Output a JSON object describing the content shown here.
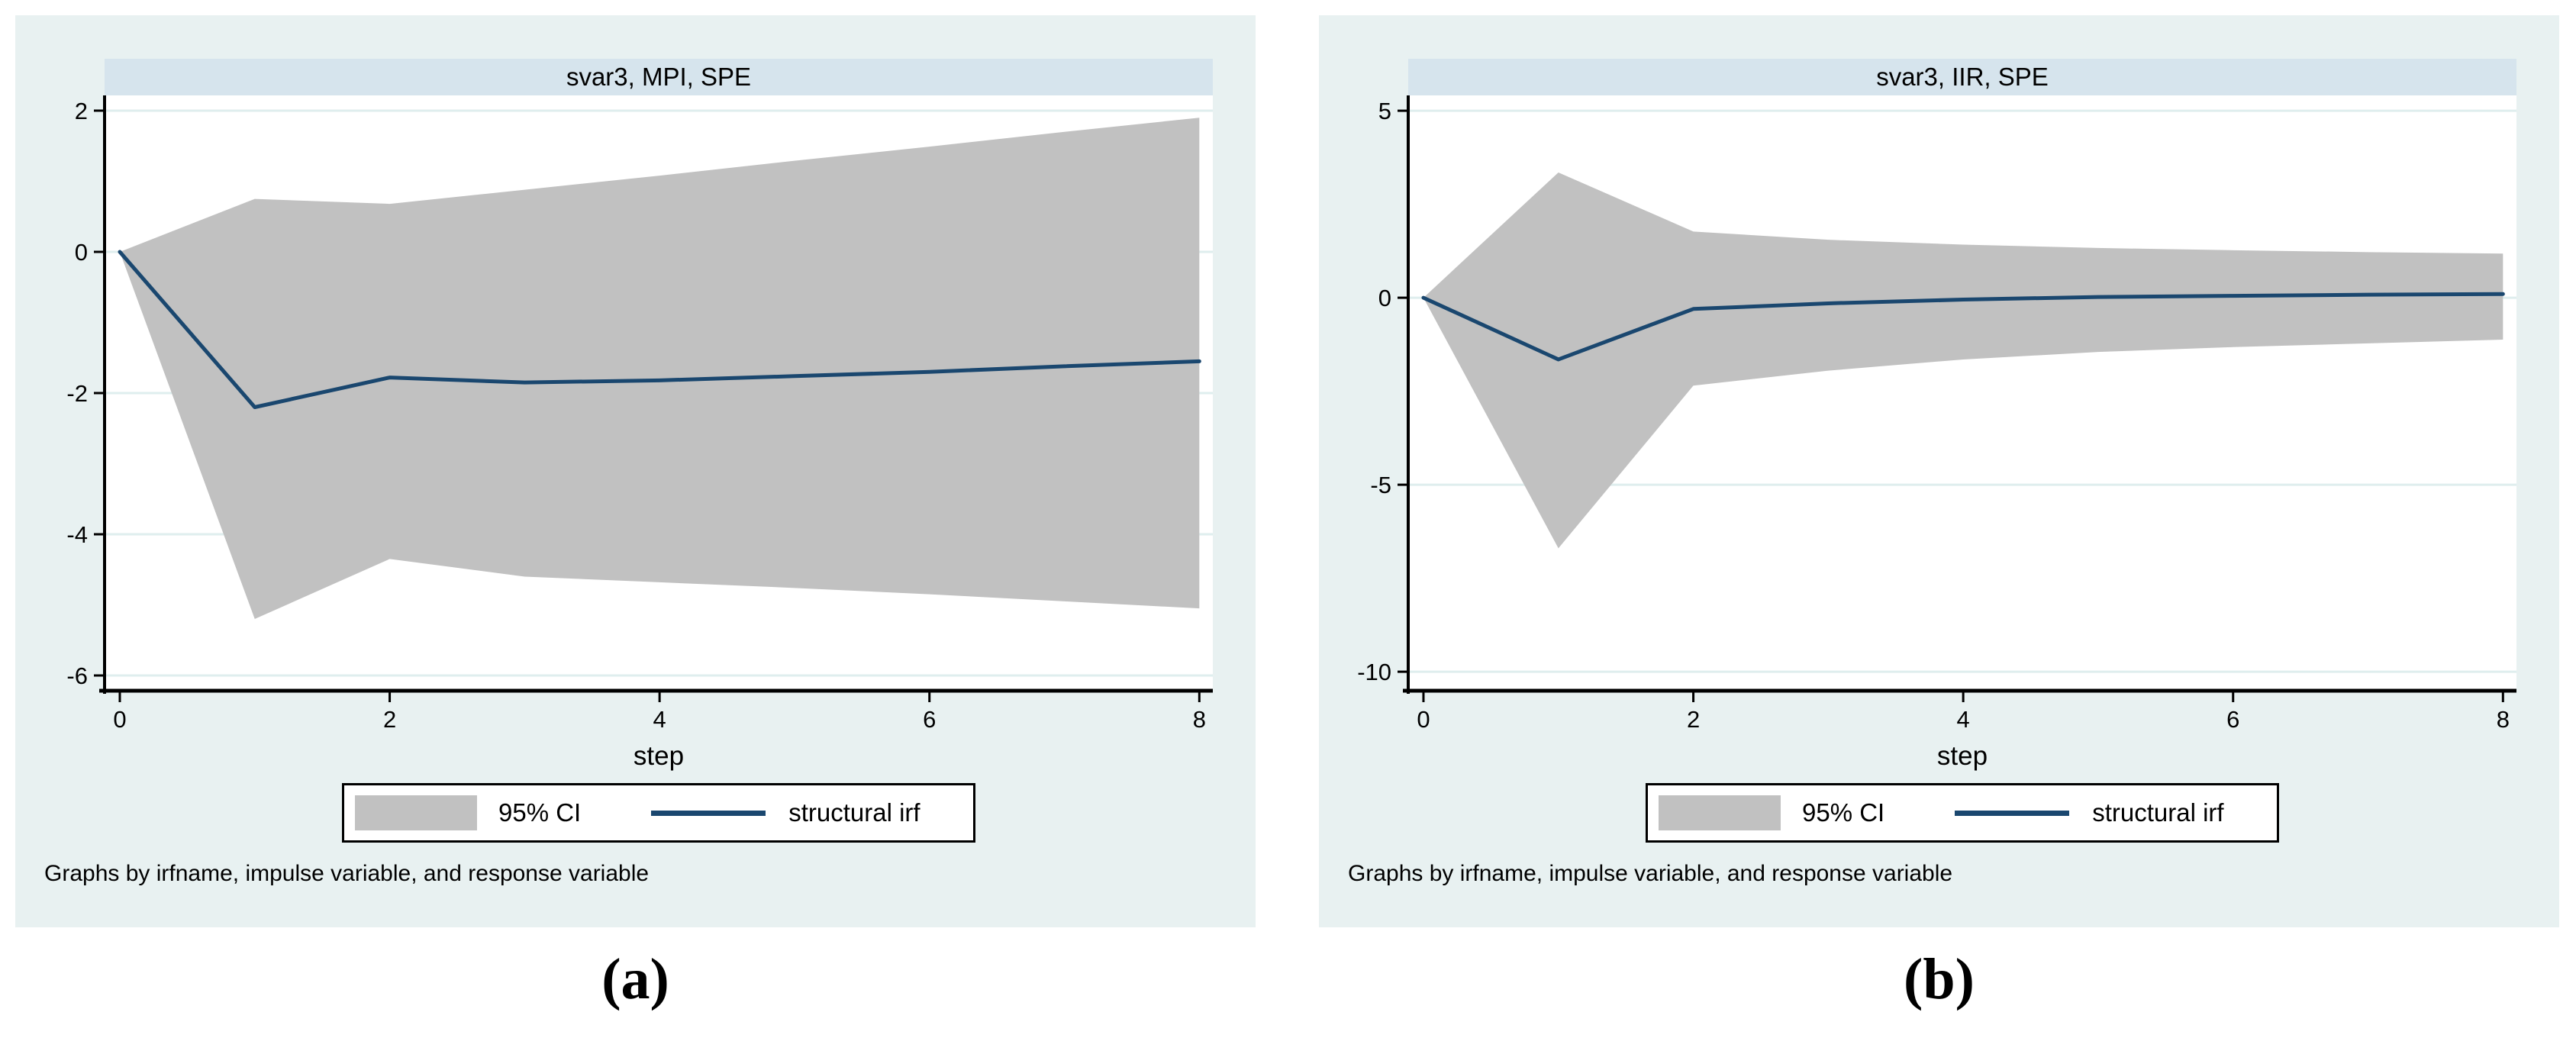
{
  "page": {
    "captions": [
      "(a)",
      "(b)"
    ]
  },
  "colors": {
    "figure_background": "#e8f1f1",
    "title_band": "#d6e4ed",
    "plot_background": "#ffffff",
    "gridline": "#dfeeee",
    "axis": "#000000",
    "ci_band": "#c1c1c1",
    "irf_line": "#1a476f",
    "text": "#000000"
  },
  "chart_data": [
    {
      "type": "area",
      "title": "svar3, MPI, SPE",
      "xlabel": "step",
      "ylabel": "",
      "x": [
        0,
        1,
        2,
        3,
        4,
        5,
        6,
        7,
        8
      ],
      "series": [
        {
          "name": "95% CI",
          "kind": "band",
          "upper": [
            0,
            0.75,
            0.68,
            0.88,
            1.08,
            1.29,
            1.49,
            1.7,
            1.9
          ],
          "lower": [
            0,
            -5.2,
            -4.35,
            -4.6,
            -4.68,
            -4.76,
            -4.85,
            -4.95,
            -5.05
          ]
        },
        {
          "name": "structural irf",
          "kind": "line",
          "values": [
            0,
            -2.2,
            -1.78,
            -1.85,
            -1.82,
            -1.76,
            -1.7,
            -1.62,
            -1.55
          ]
        }
      ],
      "xticks": [
        0,
        2,
        4,
        6,
        8
      ],
      "yticks": [
        2,
        0,
        -2,
        -4,
        -6
      ],
      "xlim": [
        -0.113,
        8.1
      ],
      "ylim": [
        -6.216,
        2.216
      ],
      "grid": true,
      "legend_position": "bottom-center",
      "note": "Graphs by irfname, impulse variable, and response variable"
    },
    {
      "type": "area",
      "title": "svar3, IIR, SPE",
      "xlabel": "step",
      "ylabel": "",
      "x": [
        0,
        1,
        2,
        3,
        4,
        5,
        6,
        7,
        8
      ],
      "series": [
        {
          "name": "95% CI",
          "kind": "band",
          "upper": [
            0,
            3.35,
            1.77,
            1.55,
            1.42,
            1.33,
            1.27,
            1.22,
            1.18
          ],
          "lower": [
            0,
            -6.7,
            -2.35,
            -1.95,
            -1.65,
            -1.45,
            -1.32,
            -1.22,
            -1.12
          ]
        },
        {
          "name": "structural irf",
          "kind": "line",
          "values": [
            0,
            -1.65,
            -0.3,
            -0.15,
            -0.05,
            0.02,
            0.05,
            0.08,
            0.1
          ]
        }
      ],
      "xticks": [
        0,
        2,
        4,
        6,
        8
      ],
      "yticks": [
        5,
        0,
        -5,
        -10
      ],
      "xlim": [
        -0.113,
        8.1
      ],
      "ylim": [
        -10.508,
        5.41
      ],
      "grid": true,
      "legend_position": "bottom-center",
      "note": "Graphs by irfname, impulse variable, and response variable"
    }
  ]
}
